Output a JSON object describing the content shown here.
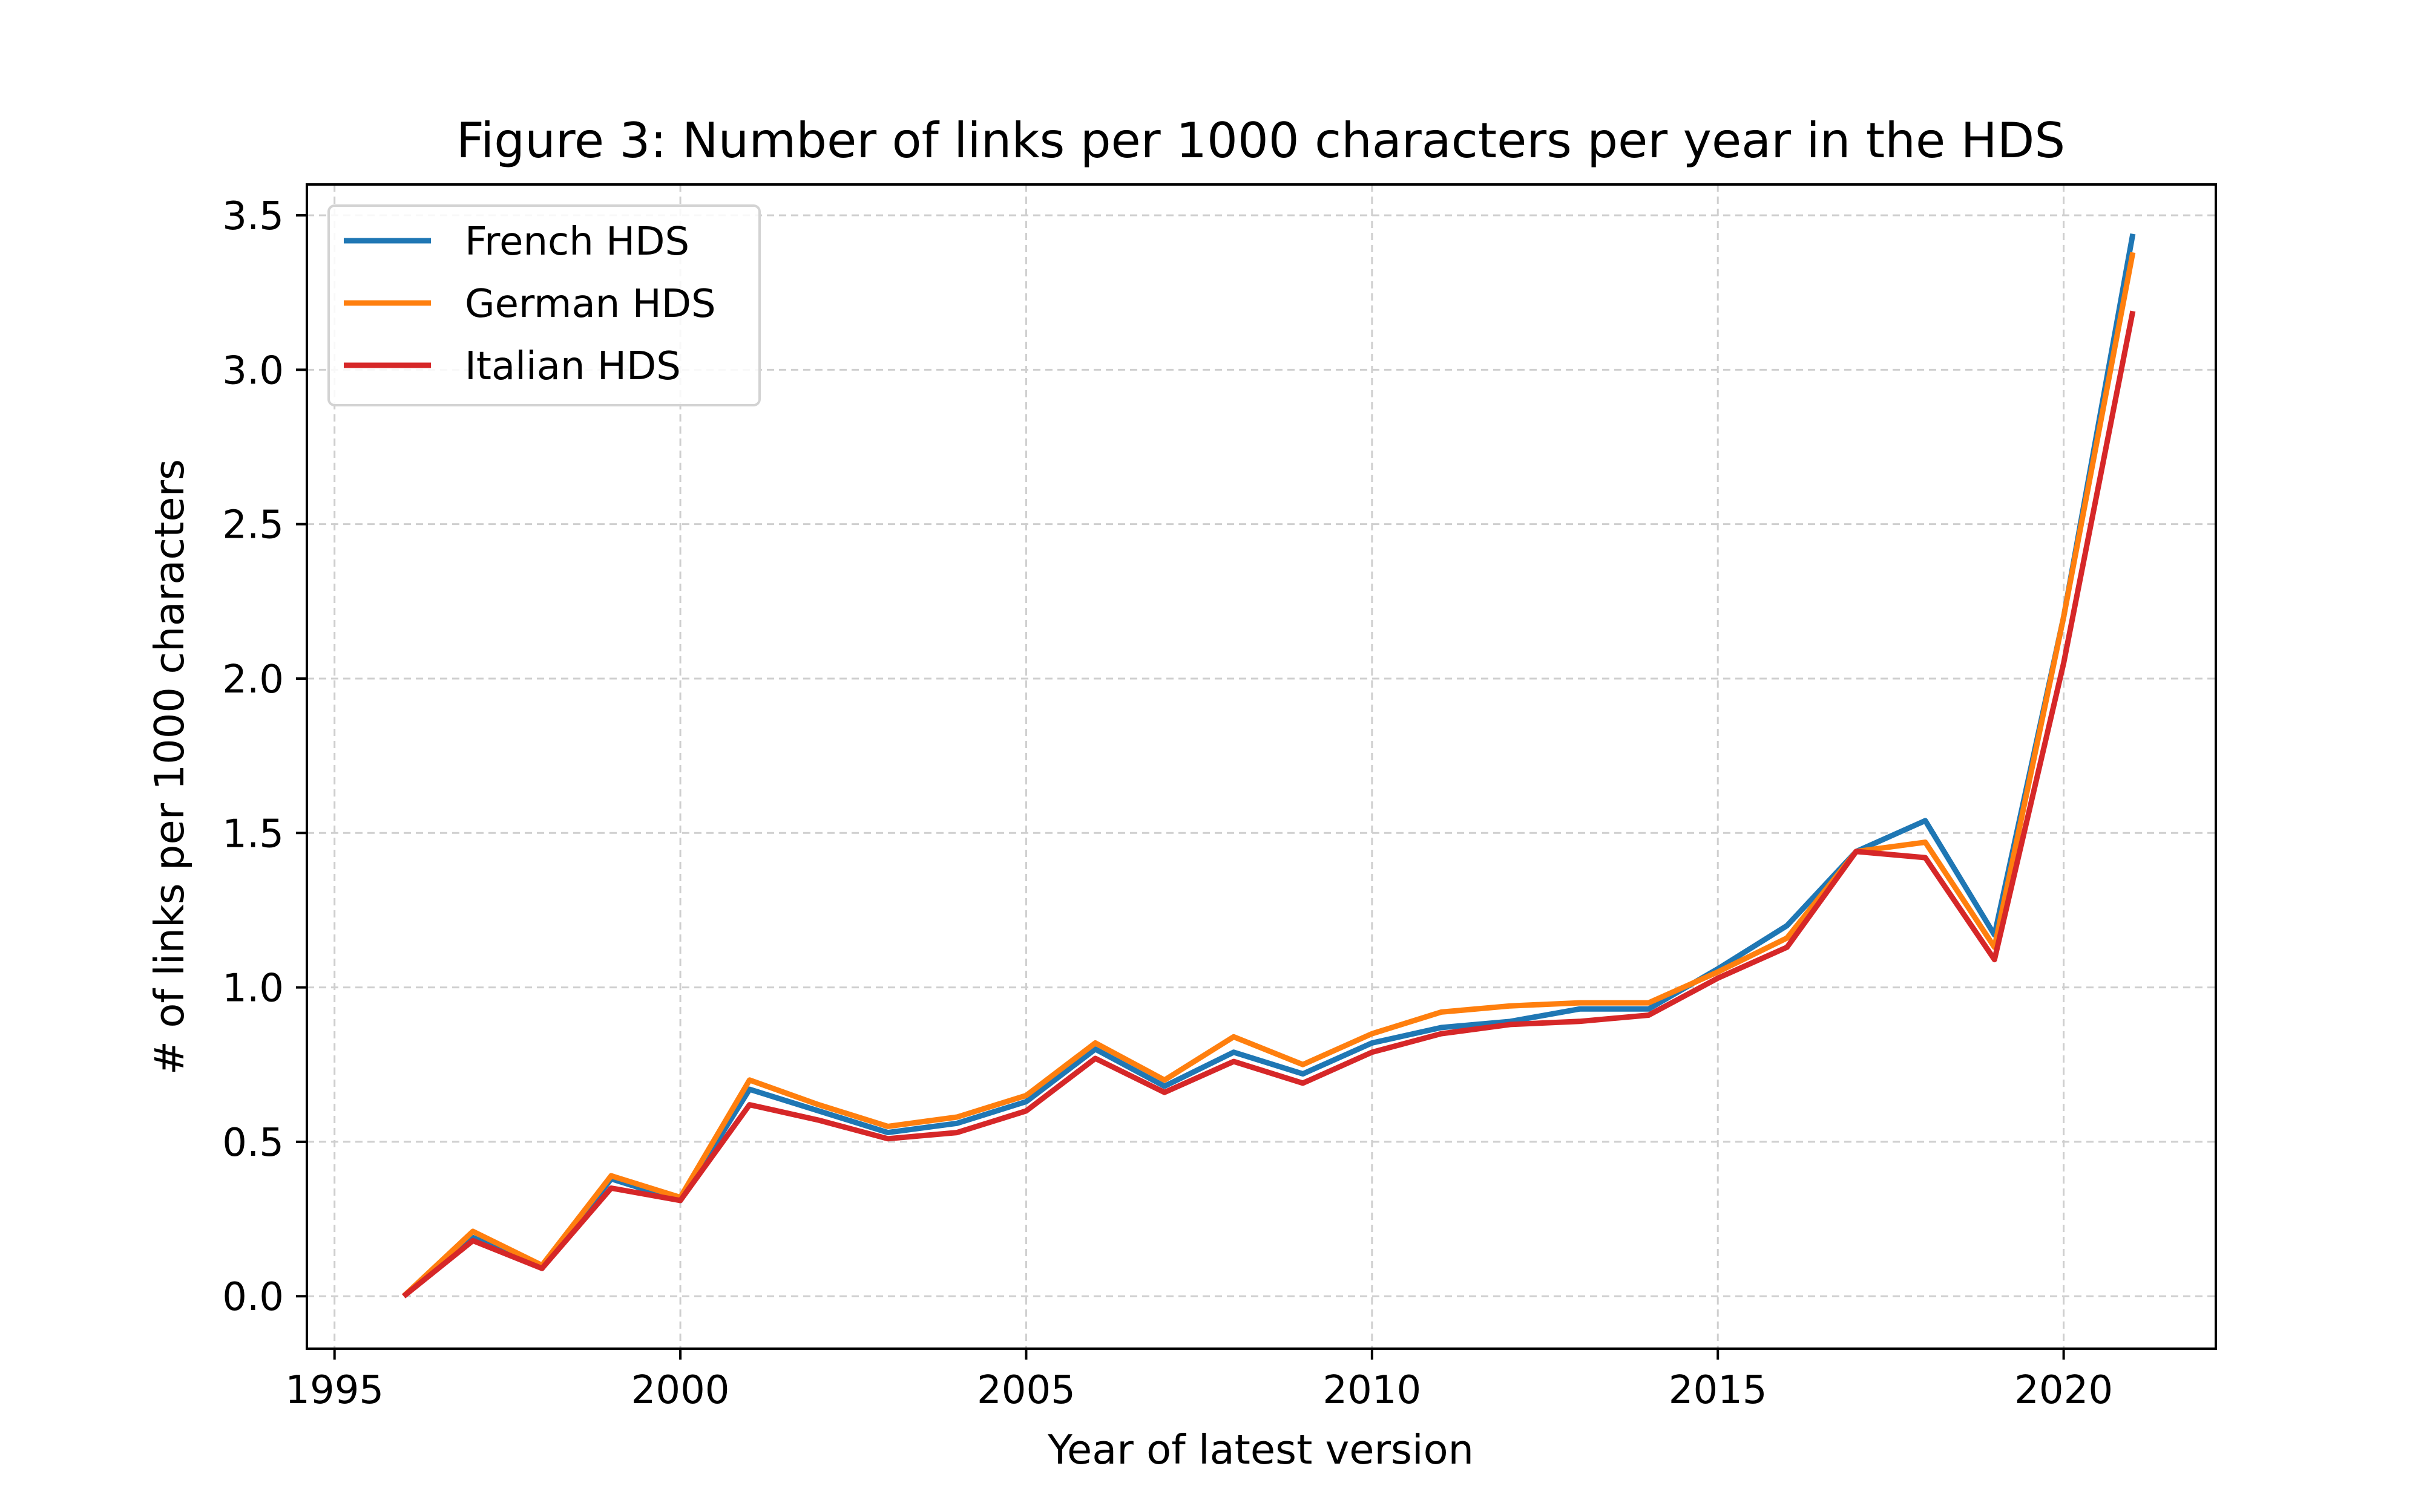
{
  "chart_data": {
    "type": "line",
    "title": "Figure 3: Number of links per 1000 characters per year in the HDS",
    "xlabel": "Year of latest version",
    "ylabel": "# of links per 1000 characters",
    "xlim": [
      1994.6,
      2022.2
    ],
    "ylim": [
      -0.17,
      3.6
    ],
    "xticks": [
      1995,
      2000,
      2005,
      2010,
      2015,
      2020
    ],
    "yticks": [
      0.0,
      0.5,
      1.0,
      1.5,
      2.0,
      2.5,
      3.0,
      3.5
    ],
    "ytick_labels": [
      "0.0",
      "0.5",
      "1.0",
      "1.5",
      "2.0",
      "2.5",
      "3.0",
      "3.5"
    ],
    "grid": true,
    "legend_position": "top-left",
    "x": [
      1996,
      1997,
      1998,
      1999,
      2000,
      2001,
      2002,
      2003,
      2004,
      2005,
      2006,
      2007,
      2008,
      2009,
      2010,
      2011,
      2012,
      2013,
      2014,
      2015,
      2016,
      2017,
      2018,
      2019,
      2020,
      2021
    ],
    "series": [
      {
        "name": "French HDS",
        "color": "#1f77b4",
        "values": [
          0.0,
          0.19,
          0.09,
          0.38,
          0.31,
          0.67,
          0.6,
          0.53,
          0.56,
          0.63,
          0.8,
          0.68,
          0.79,
          0.72,
          0.82,
          0.87,
          0.89,
          0.93,
          0.93,
          1.06,
          1.2,
          1.44,
          1.54,
          1.17,
          2.2,
          3.44
        ]
      },
      {
        "name": "German HDS",
        "color": "#ff7f0e",
        "values": [
          0.0,
          0.21,
          0.1,
          0.39,
          0.32,
          0.7,
          0.62,
          0.55,
          0.58,
          0.65,
          0.82,
          0.7,
          0.84,
          0.75,
          0.85,
          0.92,
          0.94,
          0.95,
          0.95,
          1.05,
          1.16,
          1.44,
          1.47,
          1.13,
          2.2,
          3.38
        ]
      },
      {
        "name": "Italian HDS",
        "color": "#d62728",
        "values": [
          0.0,
          0.18,
          0.09,
          0.35,
          0.31,
          0.62,
          0.57,
          0.51,
          0.53,
          0.6,
          0.77,
          0.66,
          0.76,
          0.69,
          0.79,
          0.85,
          0.88,
          0.89,
          0.91,
          1.03,
          1.13,
          1.44,
          1.42,
          1.09,
          2.05,
          3.19
        ]
      }
    ]
  }
}
